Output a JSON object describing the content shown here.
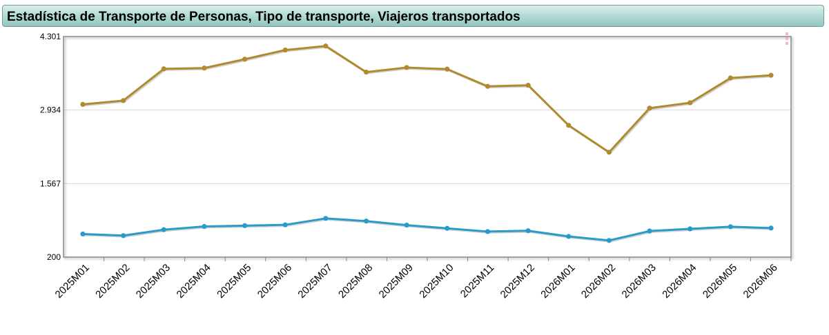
{
  "title": "Estadística de Transporte de Personas, Tipo de transporte, Viajeros transportados",
  "colors": {
    "series_1": "#b08a2e",
    "series_2": "#2a9bc9",
    "grid": "#d8d8d8",
    "axis": "#888888"
  },
  "chart_data": {
    "type": "line",
    "categories": [
      "2025M01",
      "2025M02",
      "2025M03",
      "2025M04",
      "2025M05",
      "2025M06",
      "2025M07",
      "2025M08",
      "2025M09",
      "2025M10",
      "2025M11",
      "2025M12",
      "2026M01",
      "2026M02",
      "2026M03",
      "2026M04",
      "2026M05",
      "2026M06"
    ],
    "y_ticks": [
      "4.301",
      "2.934",
      "1.567",
      "200"
    ],
    "ylim": [
      200,
      4301
    ],
    "grid": true,
    "series": [
      {
        "color": "#b08a2e",
        "values": [
          3040,
          3110,
          3700,
          3715,
          3880,
          4050,
          4125,
          3640,
          3725,
          3695,
          3375,
          3395,
          2650,
          2150,
          2970,
          3070,
          3530,
          3580
        ]
      },
      {
        "color": "#2a9bc9",
        "values": [
          630,
          600,
          710,
          770,
          785,
          800,
          920,
          870,
          795,
          735,
          675,
          690,
          585,
          510,
          685,
          725,
          765,
          740
        ]
      }
    ]
  }
}
